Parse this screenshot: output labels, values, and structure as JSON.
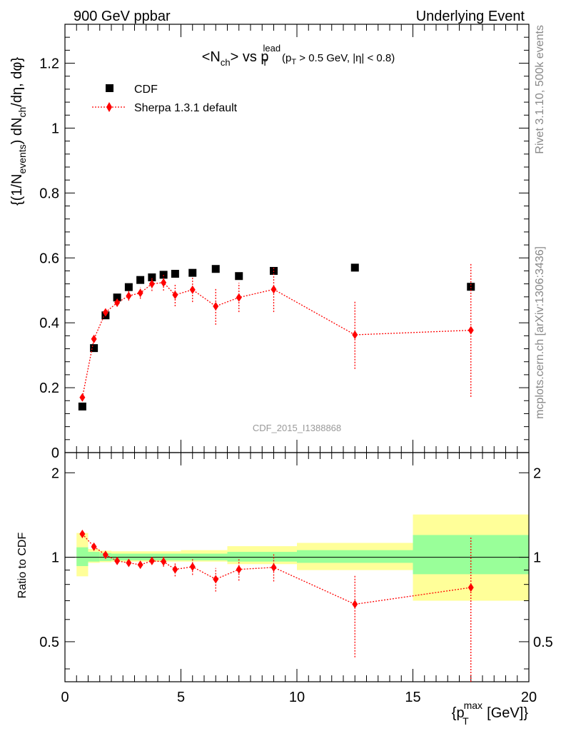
{
  "header": {
    "left": "900 GeV ppbar",
    "right": "Underlying Event"
  },
  "side_labels": {
    "top": "Rivet 3.1.10,  500k events",
    "bottom": "mcplots.cern.ch [arXiv:1306:3436]"
  },
  "watermark": "CDF_2015_I1388868",
  "chart_data": [
    {
      "type": "scatter",
      "title": "<Nch> vs pT lead (pT > 0.5 GeV, |η| < 0.8)",
      "ylabel": "{(1/Nevents) dNch/dη, dφ}",
      "xlim": [
        0,
        20
      ],
      "ylim": [
        0,
        1.32
      ],
      "y_ticks": [
        0,
        0.2,
        0.4,
        0.6,
        0.8,
        1,
        1.2
      ],
      "y_tick_labels": [
        "0",
        "0.2",
        "0.4",
        "0.6",
        "0.8",
        "1",
        "1.2"
      ],
      "legend": {
        "position": "top-left",
        "entries": [
          "CDF",
          "Sherpa 1.3.1 default"
        ]
      },
      "series": [
        {
          "name": "CDF",
          "color": "#000000",
          "marker": "square",
          "x": [
            0.75,
            1.25,
            1.75,
            2.25,
            2.75,
            3.25,
            3.75,
            4.25,
            4.75,
            5.5,
            6.5,
            7.5,
            9.0,
            12.5,
            17.5
          ],
          "y": [
            0.142,
            0.322,
            0.423,
            0.478,
            0.51,
            0.532,
            0.54,
            0.548,
            0.551,
            0.554,
            0.566,
            0.544,
            0.56,
            0.57,
            0.511
          ]
        },
        {
          "name": "Sherpa 1.3.1 default",
          "color": "#ff0000",
          "marker": "diamond",
          "line": "dotted",
          "x": [
            0.75,
            1.25,
            1.75,
            2.25,
            2.75,
            3.25,
            3.75,
            4.25,
            4.75,
            5.5,
            6.5,
            7.5,
            9.0,
            12.5,
            17.5
          ],
          "y": [
            0.17,
            0.35,
            0.432,
            0.462,
            0.483,
            0.492,
            0.52,
            0.524,
            0.486,
            0.502,
            0.451,
            0.478,
            0.503,
            0.363,
            0.377
          ],
          "err": [
            0.007,
            0.009,
            0.01,
            0.012,
            0.015,
            0.018,
            0.022,
            0.025,
            0.035,
            0.038,
            0.057,
            0.045,
            0.07,
            0.105,
            0.205
          ]
        }
      ]
    },
    {
      "type": "scatter",
      "ylabel": "Ratio to CDF",
      "xlabel": "{pT max [GeV]}",
      "xlim": [
        0,
        20
      ],
      "ylim": [
        0.36,
        2.36
      ],
      "log_y": true,
      "x_ticks": [
        0,
        5,
        10,
        15,
        20
      ],
      "x_tick_labels": [
        "0",
        "5",
        "10",
        "15",
        "20"
      ],
      "y_ticks": [
        0.5,
        1,
        2
      ],
      "y_tick_labels": [
        "0.5",
        "1",
        "2"
      ],
      "bands": {
        "edges": [
          0.5,
          1.0,
          1.5,
          2.0,
          3.0,
          5.0,
          7.0,
          10.0,
          15.0,
          20.0
        ],
        "inner_lo": [
          0.93,
          0.965,
          0.97,
          0.975,
          0.975,
          0.975,
          0.965,
          0.955,
          0.87
        ],
        "inner_hi": [
          1.085,
          1.045,
          1.035,
          1.03,
          1.03,
          1.03,
          1.045,
          1.06,
          1.2
        ],
        "outer_lo": [
          0.855,
          0.955,
          0.96,
          0.965,
          0.965,
          0.965,
          0.945,
          0.9,
          0.7
        ],
        "outer_hi": [
          1.22,
          1.07,
          1.055,
          1.05,
          1.05,
          1.06,
          1.095,
          1.125,
          1.42
        ],
        "inner_color": "#99ff99",
        "outer_color": "#ffff99"
      },
      "series": [
        {
          "name": "Sherpa 1.3.1 default",
          "color": "#ff0000",
          "marker": "diamond",
          "line": "dotted",
          "x": [
            0.75,
            1.25,
            1.75,
            2.25,
            2.75,
            3.25,
            3.75,
            4.25,
            4.75,
            5.5,
            6.5,
            7.5,
            9.0,
            12.5,
            17.5
          ],
          "y": [
            1.21,
            1.09,
            1.02,
            0.97,
            0.955,
            0.94,
            0.97,
            0.965,
            0.905,
            0.925,
            0.835,
            0.905,
            0.92,
            0.68,
            0.78
          ],
          "err_lo": [
            0.02,
            0.02,
            0.02,
            0.02,
            0.02,
            0.02,
            0.03,
            0.04,
            0.05,
            0.06,
            0.08,
            0.08,
            0.1,
            0.24,
            0.42
          ],
          "err_hi": [
            0.02,
            0.02,
            0.02,
            0.02,
            0.02,
            0.02,
            0.03,
            0.04,
            0.05,
            0.06,
            0.08,
            0.08,
            0.11,
            0.18,
            0.4
          ]
        }
      ]
    }
  ]
}
